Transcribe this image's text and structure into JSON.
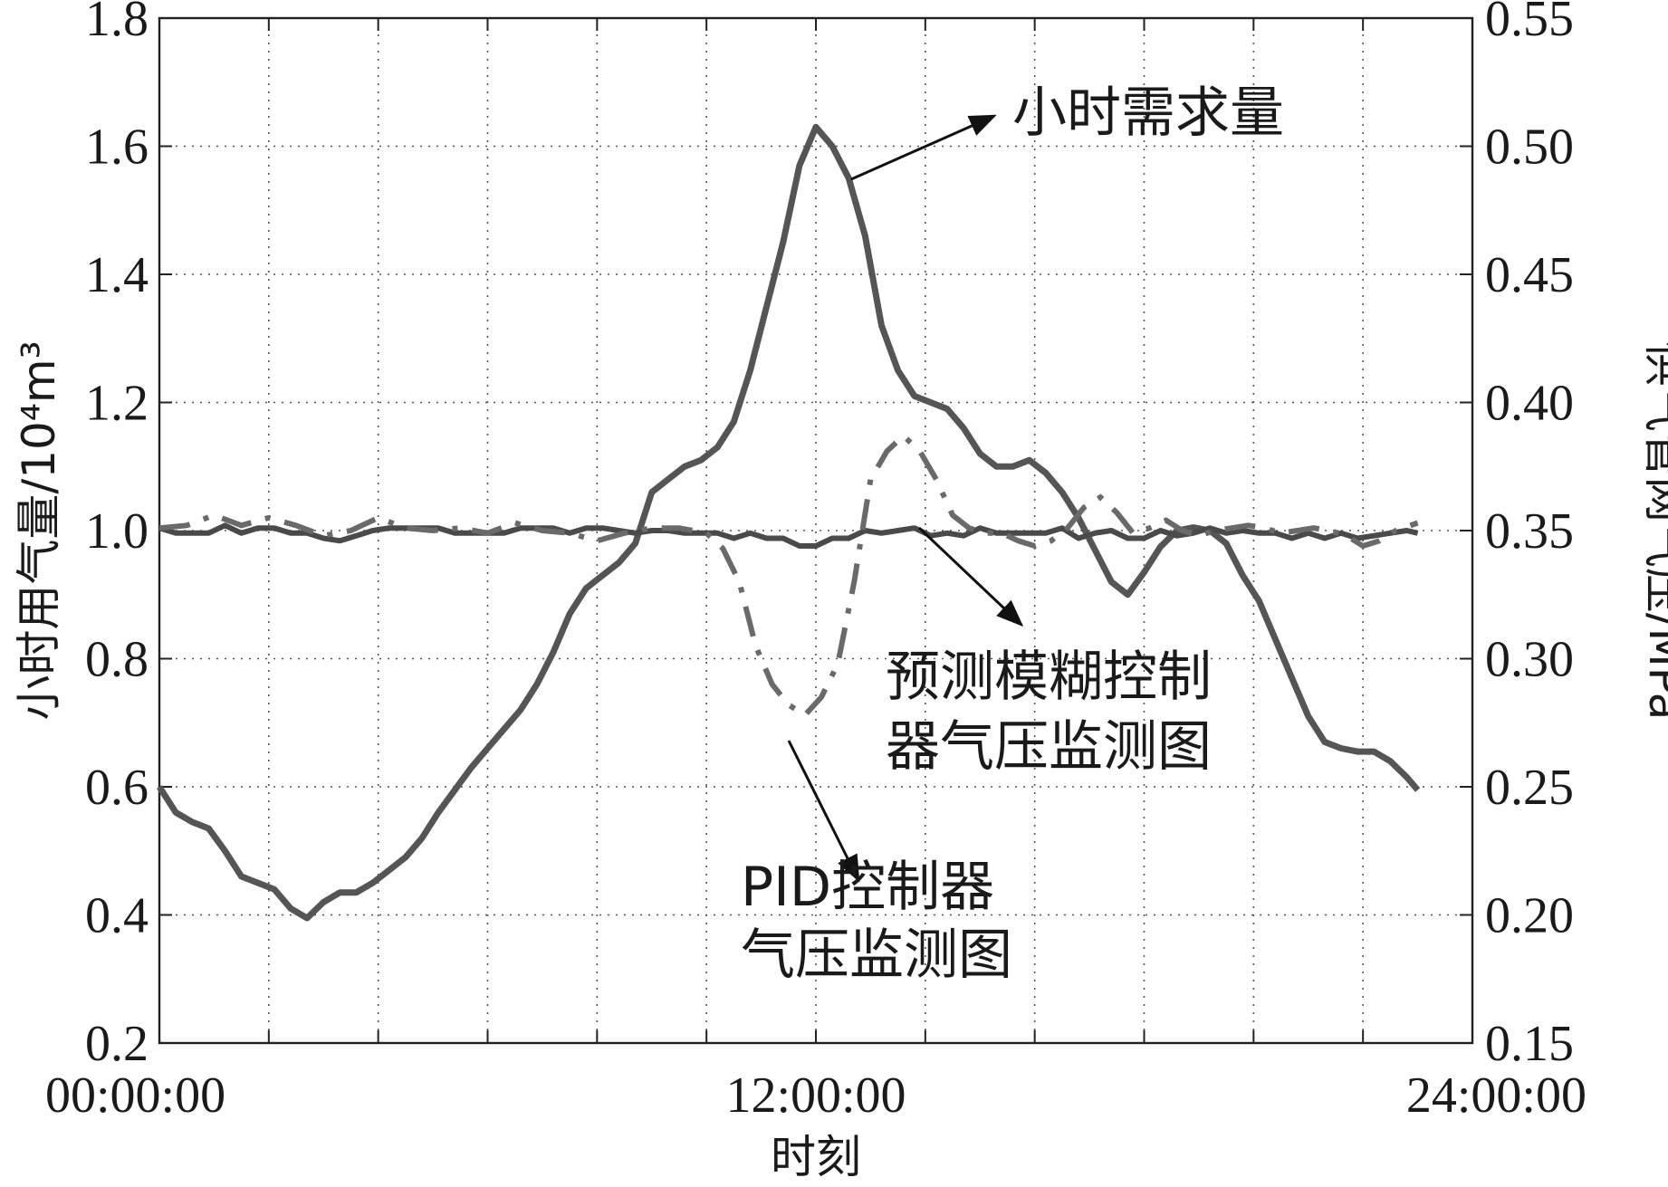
{
  "chart_data": {
    "type": "line",
    "xlabel": "时刻",
    "x_ticks": [
      "00:00:00",
      "12:00:00",
      "24:00:00"
    ],
    "x_range_hours": [
      0,
      24
    ],
    "grid": true,
    "y_left": {
      "label": "小时用气量/10⁴m³",
      "range": [
        0.2,
        1.8
      ],
      "ticks": [
        "0.2",
        "0.4",
        "0.6",
        "0.8",
        "1.0",
        "1.2",
        "1.4",
        "1.6",
        "1.8"
      ]
    },
    "y_right": {
      "label": "供气管网气压/MPa",
      "range": [
        0.15,
        0.55
      ],
      "ticks": [
        "0.15",
        "0.20",
        "0.25",
        "0.30",
        "0.35",
        "0.40",
        "0.45",
        "0.50",
        "0.55"
      ]
    },
    "series": [
      {
        "key": "demand",
        "axis": "left",
        "style": "solid",
        "points": [
          [
            0.0,
            0.6
          ],
          [
            0.3,
            0.56
          ],
          [
            0.6,
            0.545
          ],
          [
            0.9,
            0.535
          ],
          [
            1.2,
            0.5
          ],
          [
            1.5,
            0.46
          ],
          [
            1.8,
            0.45
          ],
          [
            2.1,
            0.44
          ],
          [
            2.4,
            0.41
          ],
          [
            2.7,
            0.395
          ],
          [
            3.0,
            0.42
          ],
          [
            3.3,
            0.435
          ],
          [
            3.6,
            0.435
          ],
          [
            3.9,
            0.45
          ],
          [
            4.2,
            0.47
          ],
          [
            4.5,
            0.49
          ],
          [
            4.8,
            0.52
          ],
          [
            5.1,
            0.56
          ],
          [
            5.4,
            0.595
          ],
          [
            5.7,
            0.63
          ],
          [
            6.0,
            0.66
          ],
          [
            6.3,
            0.69
          ],
          [
            6.6,
            0.72
          ],
          [
            6.9,
            0.76
          ],
          [
            7.2,
            0.81
          ],
          [
            7.5,
            0.87
          ],
          [
            7.8,
            0.91
          ],
          [
            8.1,
            0.93
          ],
          [
            8.4,
            0.95
          ],
          [
            8.7,
            0.98
          ],
          [
            9.0,
            1.06
          ],
          [
            9.3,
            1.08
          ],
          [
            9.6,
            1.1
          ],
          [
            9.9,
            1.11
          ],
          [
            10.2,
            1.13
          ],
          [
            10.5,
            1.17
          ],
          [
            10.8,
            1.25
          ],
          [
            11.1,
            1.35
          ],
          [
            11.4,
            1.45
          ],
          [
            11.7,
            1.57
          ],
          [
            12.0,
            1.63
          ],
          [
            12.3,
            1.6
          ],
          [
            12.6,
            1.55
          ],
          [
            12.9,
            1.46
          ],
          [
            13.2,
            1.32
          ],
          [
            13.5,
            1.25
          ],
          [
            13.8,
            1.21
          ],
          [
            14.1,
            1.2
          ],
          [
            14.4,
            1.19
          ],
          [
            14.7,
            1.16
          ],
          [
            15.0,
            1.12
          ],
          [
            15.3,
            1.1
          ],
          [
            15.6,
            1.1
          ],
          [
            15.9,
            1.11
          ],
          [
            16.2,
            1.09
          ],
          [
            16.5,
            1.06
          ],
          [
            16.8,
            1.02
          ],
          [
            17.1,
            0.97
          ],
          [
            17.4,
            0.92
          ],
          [
            17.7,
            0.9
          ],
          [
            18.0,
            0.935
          ],
          [
            18.3,
            0.975
          ],
          [
            18.6,
            1.0
          ],
          [
            18.9,
            1.005
          ],
          [
            19.2,
            1.0
          ],
          [
            19.5,
            0.98
          ],
          [
            19.8,
            0.93
          ],
          [
            20.1,
            0.89
          ],
          [
            20.4,
            0.83
          ],
          [
            20.7,
            0.77
          ],
          [
            21.0,
            0.71
          ],
          [
            21.3,
            0.67
          ],
          [
            21.6,
            0.66
          ],
          [
            21.9,
            0.655
          ],
          [
            22.2,
            0.655
          ],
          [
            22.5,
            0.64
          ],
          [
            22.8,
            0.615
          ],
          [
            23.0,
            0.595
          ]
        ]
      },
      {
        "key": "fuzzy_pressure",
        "axis": "right",
        "style": "solid",
        "points": [
          [
            0.0,
            0.351
          ],
          [
            0.3,
            0.349
          ],
          [
            0.6,
            0.349
          ],
          [
            0.9,
            0.349
          ],
          [
            1.2,
            0.352
          ],
          [
            1.5,
            0.349
          ],
          [
            1.8,
            0.351
          ],
          [
            2.1,
            0.351
          ],
          [
            2.4,
            0.349
          ],
          [
            2.7,
            0.349
          ],
          [
            3.0,
            0.347
          ],
          [
            3.3,
            0.346
          ],
          [
            3.6,
            0.348
          ],
          [
            3.9,
            0.35
          ],
          [
            4.2,
            0.351
          ],
          [
            4.5,
            0.351
          ],
          [
            4.8,
            0.351
          ],
          [
            5.1,
            0.351
          ],
          [
            5.4,
            0.349
          ],
          [
            5.7,
            0.349
          ],
          [
            6.0,
            0.349
          ],
          [
            6.3,
            0.349
          ],
          [
            6.6,
            0.351
          ],
          [
            6.9,
            0.351
          ],
          [
            7.2,
            0.351
          ],
          [
            7.5,
            0.349
          ],
          [
            7.8,
            0.351
          ],
          [
            8.1,
            0.351
          ],
          [
            8.4,
            0.35
          ],
          [
            8.7,
            0.349
          ],
          [
            9.0,
            0.35
          ],
          [
            9.3,
            0.35
          ],
          [
            9.6,
            0.349
          ],
          [
            9.9,
            0.349
          ],
          [
            10.2,
            0.349
          ],
          [
            10.5,
            0.347
          ],
          [
            10.8,
            0.349
          ],
          [
            11.1,
            0.347
          ],
          [
            11.4,
            0.347
          ],
          [
            11.7,
            0.344
          ],
          [
            12.0,
            0.344
          ],
          [
            12.3,
            0.347
          ],
          [
            12.6,
            0.347
          ],
          [
            12.9,
            0.35
          ],
          [
            13.2,
            0.349
          ],
          [
            13.5,
            0.35
          ],
          [
            13.8,
            0.351
          ],
          [
            14.1,
            0.348
          ],
          [
            14.4,
            0.349
          ],
          [
            14.7,
            0.348
          ],
          [
            15.0,
            0.351
          ],
          [
            15.3,
            0.349
          ],
          [
            15.6,
            0.349
          ],
          [
            15.9,
            0.349
          ],
          [
            16.2,
            0.349
          ],
          [
            16.5,
            0.351
          ],
          [
            16.8,
            0.347
          ],
          [
            17.1,
            0.349
          ],
          [
            17.4,
            0.35
          ],
          [
            17.7,
            0.347
          ],
          [
            18.0,
            0.347
          ],
          [
            18.3,
            0.35
          ],
          [
            18.6,
            0.348
          ],
          [
            18.9,
            0.349
          ],
          [
            19.2,
            0.351
          ],
          [
            19.5,
            0.349
          ],
          [
            19.8,
            0.35
          ],
          [
            20.1,
            0.349
          ],
          [
            20.4,
            0.349
          ],
          [
            20.7,
            0.347
          ],
          [
            21.0,
            0.349
          ],
          [
            21.3,
            0.347
          ],
          [
            21.6,
            0.349
          ],
          [
            21.9,
            0.347
          ],
          [
            22.2,
            0.348
          ],
          [
            22.5,
            0.349
          ],
          [
            22.8,
            0.35
          ],
          [
            23.0,
            0.349
          ]
        ]
      },
      {
        "key": "pid_pressure",
        "axis": "right",
        "style": "dash-dot",
        "points": [
          [
            0.0,
            0.351
          ],
          [
            0.5,
            0.352
          ],
          [
            1.0,
            0.356
          ],
          [
            1.5,
            0.352
          ],
          [
            2.0,
            0.355
          ],
          [
            2.5,
            0.352
          ],
          [
            3.0,
            0.348
          ],
          [
            3.5,
            0.35
          ],
          [
            4.0,
            0.355
          ],
          [
            4.5,
            0.351
          ],
          [
            5.0,
            0.35
          ],
          [
            5.5,
            0.351
          ],
          [
            6.0,
            0.349
          ],
          [
            6.5,
            0.353
          ],
          [
            7.0,
            0.35
          ],
          [
            7.5,
            0.349
          ],
          [
            8.0,
            0.346
          ],
          [
            8.5,
            0.349
          ],
          [
            9.0,
            0.351
          ],
          [
            9.5,
            0.351
          ],
          [
            10.0,
            0.349
          ],
          [
            10.3,
            0.343
          ],
          [
            10.6,
            0.33
          ],
          [
            10.9,
            0.305
          ],
          [
            11.2,
            0.29
          ],
          [
            11.5,
            0.282
          ],
          [
            11.8,
            0.278
          ],
          [
            12.1,
            0.285
          ],
          [
            12.4,
            0.298
          ],
          [
            12.7,
            0.33
          ],
          [
            13.0,
            0.37
          ],
          [
            13.3,
            0.381
          ],
          [
            13.6,
            0.387
          ],
          [
            13.9,
            0.381
          ],
          [
            14.2,
            0.37
          ],
          [
            14.5,
            0.356
          ],
          [
            14.8,
            0.351
          ],
          [
            15.1,
            0.349
          ],
          [
            15.4,
            0.349
          ],
          [
            15.7,
            0.346
          ],
          [
            16.0,
            0.344
          ],
          [
            16.3,
            0.346
          ],
          [
            16.6,
            0.351
          ],
          [
            16.9,
            0.359
          ],
          [
            17.2,
            0.363
          ],
          [
            17.5,
            0.357
          ],
          [
            17.8,
            0.349
          ],
          [
            18.1,
            0.351
          ],
          [
            18.4,
            0.354
          ],
          [
            18.7,
            0.35
          ],
          [
            19.0,
            0.348
          ],
          [
            19.3,
            0.35
          ],
          [
            19.6,
            0.351
          ],
          [
            19.9,
            0.352
          ],
          [
            20.2,
            0.351
          ],
          [
            20.5,
            0.349
          ],
          [
            20.8,
            0.35
          ],
          [
            21.1,
            0.351
          ],
          [
            21.4,
            0.35
          ],
          [
            21.7,
            0.348
          ],
          [
            22.0,
            0.344
          ],
          [
            22.3,
            0.346
          ],
          [
            22.6,
            0.35
          ],
          [
            23.0,
            0.353
          ]
        ]
      }
    ],
    "annotations": [
      {
        "key": "demand",
        "lines": [
          "小时需求量"
        ]
      },
      {
        "key": "fuzzy",
        "lines": [
          "预测模糊控制",
          "器气压监测图"
        ]
      },
      {
        "key": "pid",
        "lines": [
          "PID控制器",
          "气压监测图"
        ]
      }
    ]
  }
}
